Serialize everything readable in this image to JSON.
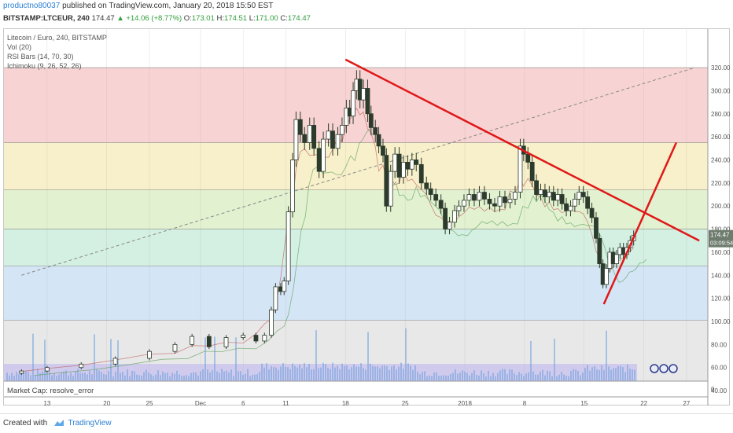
{
  "publisher": {
    "author": "productno80037",
    "text": "published on TradingView.com, January 20, 2018 15:50 EST"
  },
  "quote": {
    "symbol": "BITSTAMP:LTCEUR, 240",
    "last": "174.47",
    "change": "▲ +14.06 (+8.77%)",
    "open_label": "O:",
    "open": "173.01",
    "high_label": "H:",
    "high": "174.51",
    "low_label": "L:",
    "low": "171.00",
    "close_label": "C:",
    "close": "174.47"
  },
  "legend": {
    "title": "Litecoin / Euro, 240, BITSTAMP",
    "vol": "Vol (20)",
    "rsi": "RSI Bars (14, 70, 30)",
    "ichimoku": "Ichimoku (9, 26, 52, 26)"
  },
  "market_cap": "Market Cap: resolve_error",
  "price_badge": "174.47",
  "timer_badge": "03:09:54",
  "footer": {
    "created_with": "Created with",
    "brand": "TradingView"
  },
  "colors": {
    "candle": "#2d3b2d",
    "trend_red": "#e01818",
    "price_badge": "#6e7c6e",
    "volume": "#6ea0dc"
  },
  "chart_data": {
    "type": "candlestick",
    "ylim": [
      0,
      325
    ],
    "y_ticks": [
      "320.00",
      "300.00",
      "280.00",
      "260.00",
      "240.00",
      "220.00",
      "200.00",
      "180.00",
      "160.00",
      "140.00",
      "120.00",
      "100.00",
      "80.00",
      "60.00",
      "40.00"
    ],
    "y_tick_values": [
      320,
      300,
      280,
      260,
      240,
      220,
      200,
      180,
      160,
      140,
      120,
      100,
      80,
      60,
      40
    ],
    "lower_pane_tick": "0",
    "x_ticks": [
      "13",
      "20",
      "25",
      "Dec",
      "6",
      "11",
      "18",
      "25",
      "2018",
      "8",
      "15",
      "22",
      "27"
    ],
    "x_tick_days": [
      -18,
      -11,
      -6,
      0,
      5,
      10,
      17,
      24,
      31,
      38,
      45,
      52,
      57
    ],
    "fib_levels": [
      320,
      255,
      214,
      180,
      148,
      101
    ],
    "fib_colors": [
      "#f4b6b6",
      "#f2e6a6",
      "#cfe8b0",
      "#b7e6cf",
      "#b8d4ee",
      "#d8d8d8"
    ],
    "candles": [
      {
        "day": -21.0,
        "close": 57
      },
      {
        "day": -18.0,
        "close": 60
      },
      {
        "day": -14.0,
        "close": 63
      },
      {
        "day": -10.0,
        "close": 68
      },
      {
        "day": -6.0,
        "close": 74
      },
      {
        "day": -3.0,
        "close": 80
      },
      {
        "day": -1.0,
        "close": 87
      },
      {
        "day": 1.0,
        "close": 78
      },
      {
        "day": 3.0,
        "close": 86
      },
      {
        "day": 5.0,
        "close": 88
      },
      {
        "day": 6.5,
        "close": 83
      },
      {
        "day": 7.5,
        "close": 88
      },
      {
        "day": 8.3,
        "close": 110
      },
      {
        "day": 8.8,
        "close": 130
      },
      {
        "day": 9.4,
        "close": 126
      },
      {
        "day": 9.8,
        "close": 135
      },
      {
        "day": 10.3,
        "close": 195
      },
      {
        "day": 10.8,
        "close": 240
      },
      {
        "day": 11.2,
        "close": 275
      },
      {
        "day": 11.7,
        "close": 262
      },
      {
        "day": 12.2,
        "close": 255
      },
      {
        "day": 12.8,
        "close": 270
      },
      {
        "day": 13.3,
        "close": 250
      },
      {
        "day": 13.9,
        "close": 230
      },
      {
        "day": 14.4,
        "close": 258
      },
      {
        "day": 15.0,
        "close": 265
      },
      {
        "day": 15.5,
        "close": 250
      },
      {
        "day": 16.1,
        "close": 262
      },
      {
        "day": 16.6,
        "close": 270
      },
      {
        "day": 17.1,
        "close": 285
      },
      {
        "day": 17.5,
        "close": 278
      },
      {
        "day": 17.9,
        "close": 300
      },
      {
        "day": 18.3,
        "close": 310
      },
      {
        "day": 18.7,
        "close": 292
      },
      {
        "day": 19.1,
        "close": 302
      },
      {
        "day": 19.6,
        "close": 280
      },
      {
        "day": 20.0,
        "close": 268
      },
      {
        "day": 20.5,
        "close": 262
      },
      {
        "day": 20.9,
        "close": 252
      },
      {
        "day": 21.4,
        "close": 244
      },
      {
        "day": 21.8,
        "close": 200
      },
      {
        "day": 22.3,
        "close": 230
      },
      {
        "day": 22.8,
        "close": 245
      },
      {
        "day": 23.3,
        "close": 225
      },
      {
        "day": 23.8,
        "close": 238
      },
      {
        "day": 24.3,
        "close": 232
      },
      {
        "day": 24.8,
        "close": 240
      },
      {
        "day": 25.3,
        "close": 236
      },
      {
        "day": 25.9,
        "close": 220
      },
      {
        "day": 26.5,
        "close": 215
      },
      {
        "day": 27.0,
        "close": 210
      },
      {
        "day": 27.6,
        "close": 205
      },
      {
        "day": 28.2,
        "close": 198
      },
      {
        "day": 28.7,
        "close": 180
      },
      {
        "day": 29.2,
        "close": 186
      },
      {
        "day": 29.8,
        "close": 196
      },
      {
        "day": 30.3,
        "close": 200
      },
      {
        "day": 30.9,
        "close": 205
      },
      {
        "day": 31.5,
        "close": 210
      },
      {
        "day": 32.1,
        "close": 205
      },
      {
        "day": 32.7,
        "close": 212
      },
      {
        "day": 33.3,
        "close": 206
      },
      {
        "day": 33.9,
        "close": 202
      },
      {
        "day": 34.5,
        "close": 200
      },
      {
        "day": 35.1,
        "close": 208
      },
      {
        "day": 35.7,
        "close": 203
      },
      {
        "day": 36.3,
        "close": 206
      },
      {
        "day": 36.9,
        "close": 212
      },
      {
        "day": 37.5,
        "close": 252
      },
      {
        "day": 37.9,
        "close": 245
      },
      {
        "day": 38.4,
        "close": 238
      },
      {
        "day": 38.9,
        "close": 222
      },
      {
        "day": 39.4,
        "close": 210
      },
      {
        "day": 39.9,
        "close": 214
      },
      {
        "day": 40.4,
        "close": 208
      },
      {
        "day": 40.9,
        "close": 212
      },
      {
        "day": 41.4,
        "close": 205
      },
      {
        "day": 41.9,
        "close": 210
      },
      {
        "day": 42.4,
        "close": 202
      },
      {
        "day": 42.9,
        "close": 196
      },
      {
        "day": 43.4,
        "close": 200
      },
      {
        "day": 43.9,
        "close": 206
      },
      {
        "day": 44.4,
        "close": 212
      },
      {
        "day": 44.9,
        "close": 208
      },
      {
        "day": 45.4,
        "close": 198
      },
      {
        "day": 45.9,
        "close": 190
      },
      {
        "day": 46.4,
        "close": 172
      },
      {
        "day": 46.8,
        "close": 150
      },
      {
        "day": 47.2,
        "close": 132
      },
      {
        "day": 47.6,
        "close": 146
      },
      {
        "day": 48.0,
        "close": 160
      },
      {
        "day": 48.4,
        "close": 150
      },
      {
        "day": 48.8,
        "close": 158
      },
      {
        "day": 49.2,
        "close": 164
      },
      {
        "day": 49.6,
        "close": 158
      },
      {
        "day": 50.0,
        "close": 164
      },
      {
        "day": 50.4,
        "close": 170
      },
      {
        "day": 50.8,
        "close": 174.47
      }
    ],
    "trendlines": [
      {
        "from": [
          17.0,
          327
        ],
        "to": [
          58.5,
          170
        ]
      },
      {
        "from": [
          47.3,
          115
        ],
        "to": [
          55.8,
          255
        ]
      }
    ],
    "dashed_trend": {
      "from": [
        -21.0,
        140
      ],
      "to": [
        58.0,
        320
      ]
    }
  }
}
